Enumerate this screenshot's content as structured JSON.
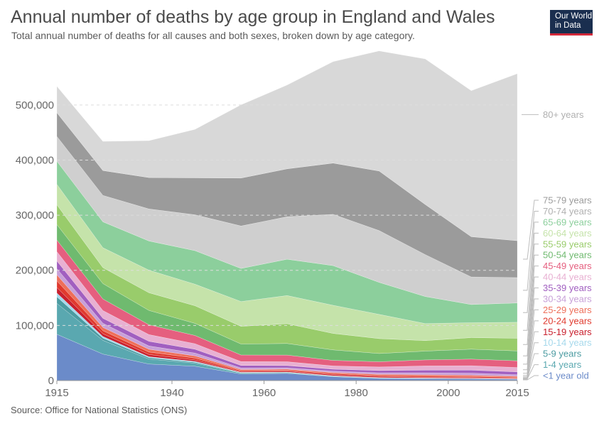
{
  "header": {
    "title": "Annual number of deaths by age group in England and Wales",
    "subtitle": "Total annual number of deaths for all causes and both sexes, broken down by age category.",
    "logo_line1": "Our World",
    "logo_line2": "in Data"
  },
  "footer": {
    "source": "Source: Office for National Statistics (ONS)"
  },
  "chart_data": {
    "type": "area",
    "stacked": true,
    "x": [
      1915,
      1925,
      1935,
      1945,
      1955,
      1965,
      1975,
      1985,
      1995,
      2005,
      2015
    ],
    "x_ticks": [
      "1915",
      "1940",
      "1960",
      "1980",
      "2000",
      "2015"
    ],
    "y_ticks": [
      "0",
      "100,000",
      "200,000",
      "300,000",
      "400,000",
      "500,000"
    ],
    "ylim": [
      0,
      590000
    ],
    "grid": "horizontal dashed",
    "series": [
      {
        "name": "<1 year old",
        "color": "#6b8bc9",
        "values": [
          84000,
          48000,
          30000,
          26000,
          12000,
          13000,
          7000,
          4000,
          3500,
          3200,
          2500
        ]
      },
      {
        "name": "1-4 years",
        "color": "#5aa8b0",
        "values": [
          56000,
          25000,
          9000,
          5500,
          1500,
          1300,
          900,
          700,
          600,
          500,
          400
        ]
      },
      {
        "name": "5-9 years",
        "color": "#4b9ba1",
        "values": [
          12000,
          4000,
          2500,
          1800,
          800,
          600,
          400,
          300,
          250,
          200,
          150
        ]
      },
      {
        "name": "10-14 years",
        "color": "#a6d9ec",
        "values": [
          7000,
          3000,
          1800,
          1500,
          600,
          500,
          400,
          300,
          250,
          250,
          200
        ]
      },
      {
        "name": "15-19 years",
        "color": "#c9202e",
        "values": [
          10000,
          5000,
          4000,
          2500,
          1500,
          1700,
          2000,
          1900,
          1500,
          1400,
          1000
        ]
      },
      {
        "name": "20-24 years",
        "color": "#e03a2e",
        "values": [
          12000,
          5500,
          4500,
          3500,
          1700,
          1800,
          2000,
          2000,
          2000,
          1800,
          1500
        ]
      },
      {
        "name": "25-29 years",
        "color": "#ee6f5a",
        "values": [
          11000,
          6000,
          5000,
          4000,
          2000,
          1800,
          2000,
          2100,
          2500,
          2300,
          2000
        ]
      },
      {
        "name": "30-34 years",
        "color": "#c8a0d8",
        "values": [
          11000,
          7500,
          6000,
          5000,
          2800,
          2500,
          2400,
          2800,
          3400,
          3800,
          3000
        ]
      },
      {
        "name": "35-39 years",
        "color": "#a15fc0",
        "values": [
          14000,
          9000,
          8500,
          7000,
          4500,
          4000,
          3500,
          4000,
          5000,
          5500,
          5000
        ]
      },
      {
        "name": "40-44 years",
        "color": "#e8b0d2",
        "values": [
          17000,
          14000,
          12000,
          10000,
          7000,
          7000,
          6000,
          6500,
          7500,
          8000,
          8000
        ]
      },
      {
        "name": "45-49 years",
        "color": "#e55f7f",
        "values": [
          21000,
          21000,
          18000,
          15000,
          12000,
          12000,
          10000,
          9500,
          11000,
          12000,
          12000
        ]
      },
      {
        "name": "50-54 years",
        "color": "#6fba6f",
        "values": [
          28000,
          28000,
          26000,
          22000,
          20000,
          21000,
          19000,
          15000,
          16000,
          18000,
          18000
        ]
      },
      {
        "name": "55-59 years",
        "color": "#99cc6b",
        "values": [
          36000,
          29000,
          32000,
          32000,
          32000,
          36000,
          30000,
          27000,
          19000,
          21000,
          23000
        ]
      },
      {
        "name": "60-64 years",
        "color": "#c5e3aa",
        "values": [
          37000,
          36000,
          41000,
          39000,
          45000,
          51000,
          51000,
          44000,
          31000,
          27000,
          29000
        ]
      },
      {
        "name": "65-69 years",
        "color": "#8ccf9c",
        "values": [
          42000,
          47000,
          53000,
          61000,
          60000,
          66000,
          72000,
          58000,
          49000,
          33000,
          35000
        ]
      },
      {
        "name": "70-74 years",
        "color": "#cfcfcf",
        "values": [
          45000,
          48000,
          58000,
          65000,
          77000,
          77000,
          93000,
          94000,
          76000,
          50000,
          46000
        ]
      },
      {
        "name": "75-79 years",
        "color": "#9b9b9b",
        "values": [
          43000,
          45000,
          57000,
          67000,
          87000,
          87000,
          93000,
          108000,
          91000,
          73000,
          67000
        ]
      },
      {
        "name": "80+ years",
        "color": "#d8d8d8",
        "values": [
          48000,
          53000,
          67000,
          88000,
          133000,
          152000,
          184000,
          218000,
          264000,
          265000,
          303000
        ]
      }
    ]
  }
}
